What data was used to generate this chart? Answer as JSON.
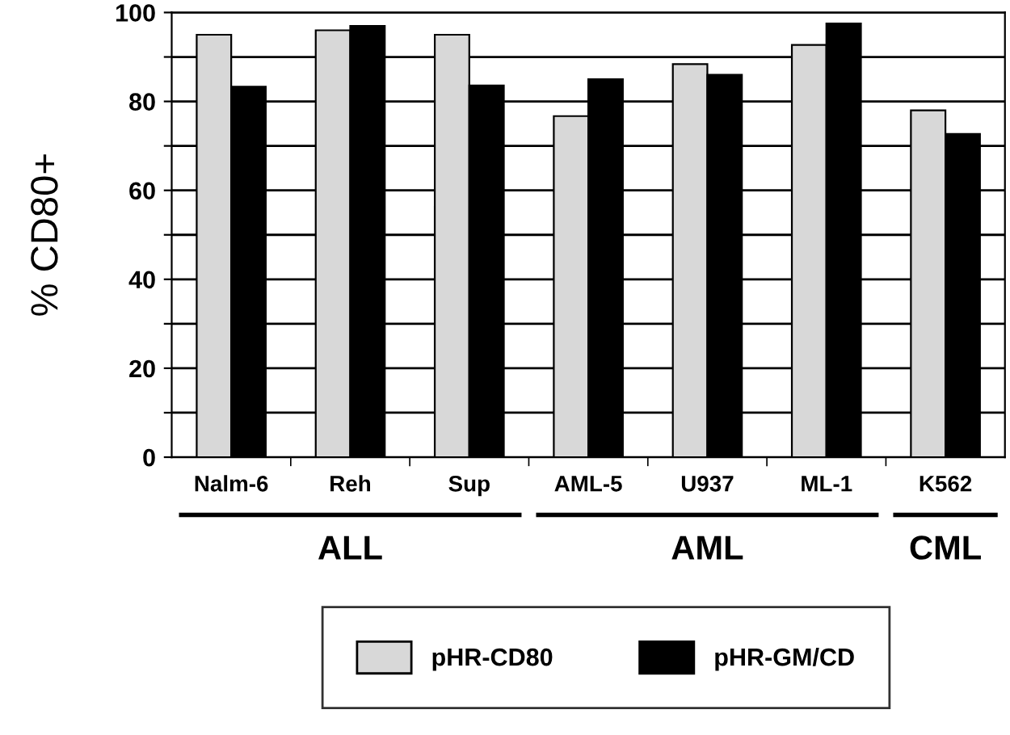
{
  "chart_data": {
    "type": "bar",
    "ylabel": "% CD80+",
    "categories": [
      "Nalm-6",
      "Reh",
      "Sup",
      "AML-5",
      "U937",
      "ML-1",
      "K562"
    ],
    "series": [
      {
        "name": "pHR-CD80",
        "color": "#d8d8d8",
        "values": [
          95,
          96,
          95,
          76.7,
          88.4,
          92.7,
          78
        ]
      },
      {
        "name": "pHR-GM/CD",
        "color": "#000000",
        "values": [
          83.3,
          97,
          83.6,
          85,
          86,
          97.5,
          72.7
        ]
      }
    ],
    "ylim": [
      0,
      100
    ],
    "yticks": [
      0,
      {
        "value": 10,
        "label": null
      },
      20,
      {
        "value": 30,
        "label": null
      },
      40,
      {
        "value": 50,
        "label": null
      },
      60,
      {
        "value": 70,
        "label": null
      },
      80,
      {
        "value": 90,
        "label": null
      },
      100
    ],
    "grid": "y",
    "legend": "bottom",
    "annotations": [
      "ALL",
      "AML",
      "CML"
    ]
  }
}
